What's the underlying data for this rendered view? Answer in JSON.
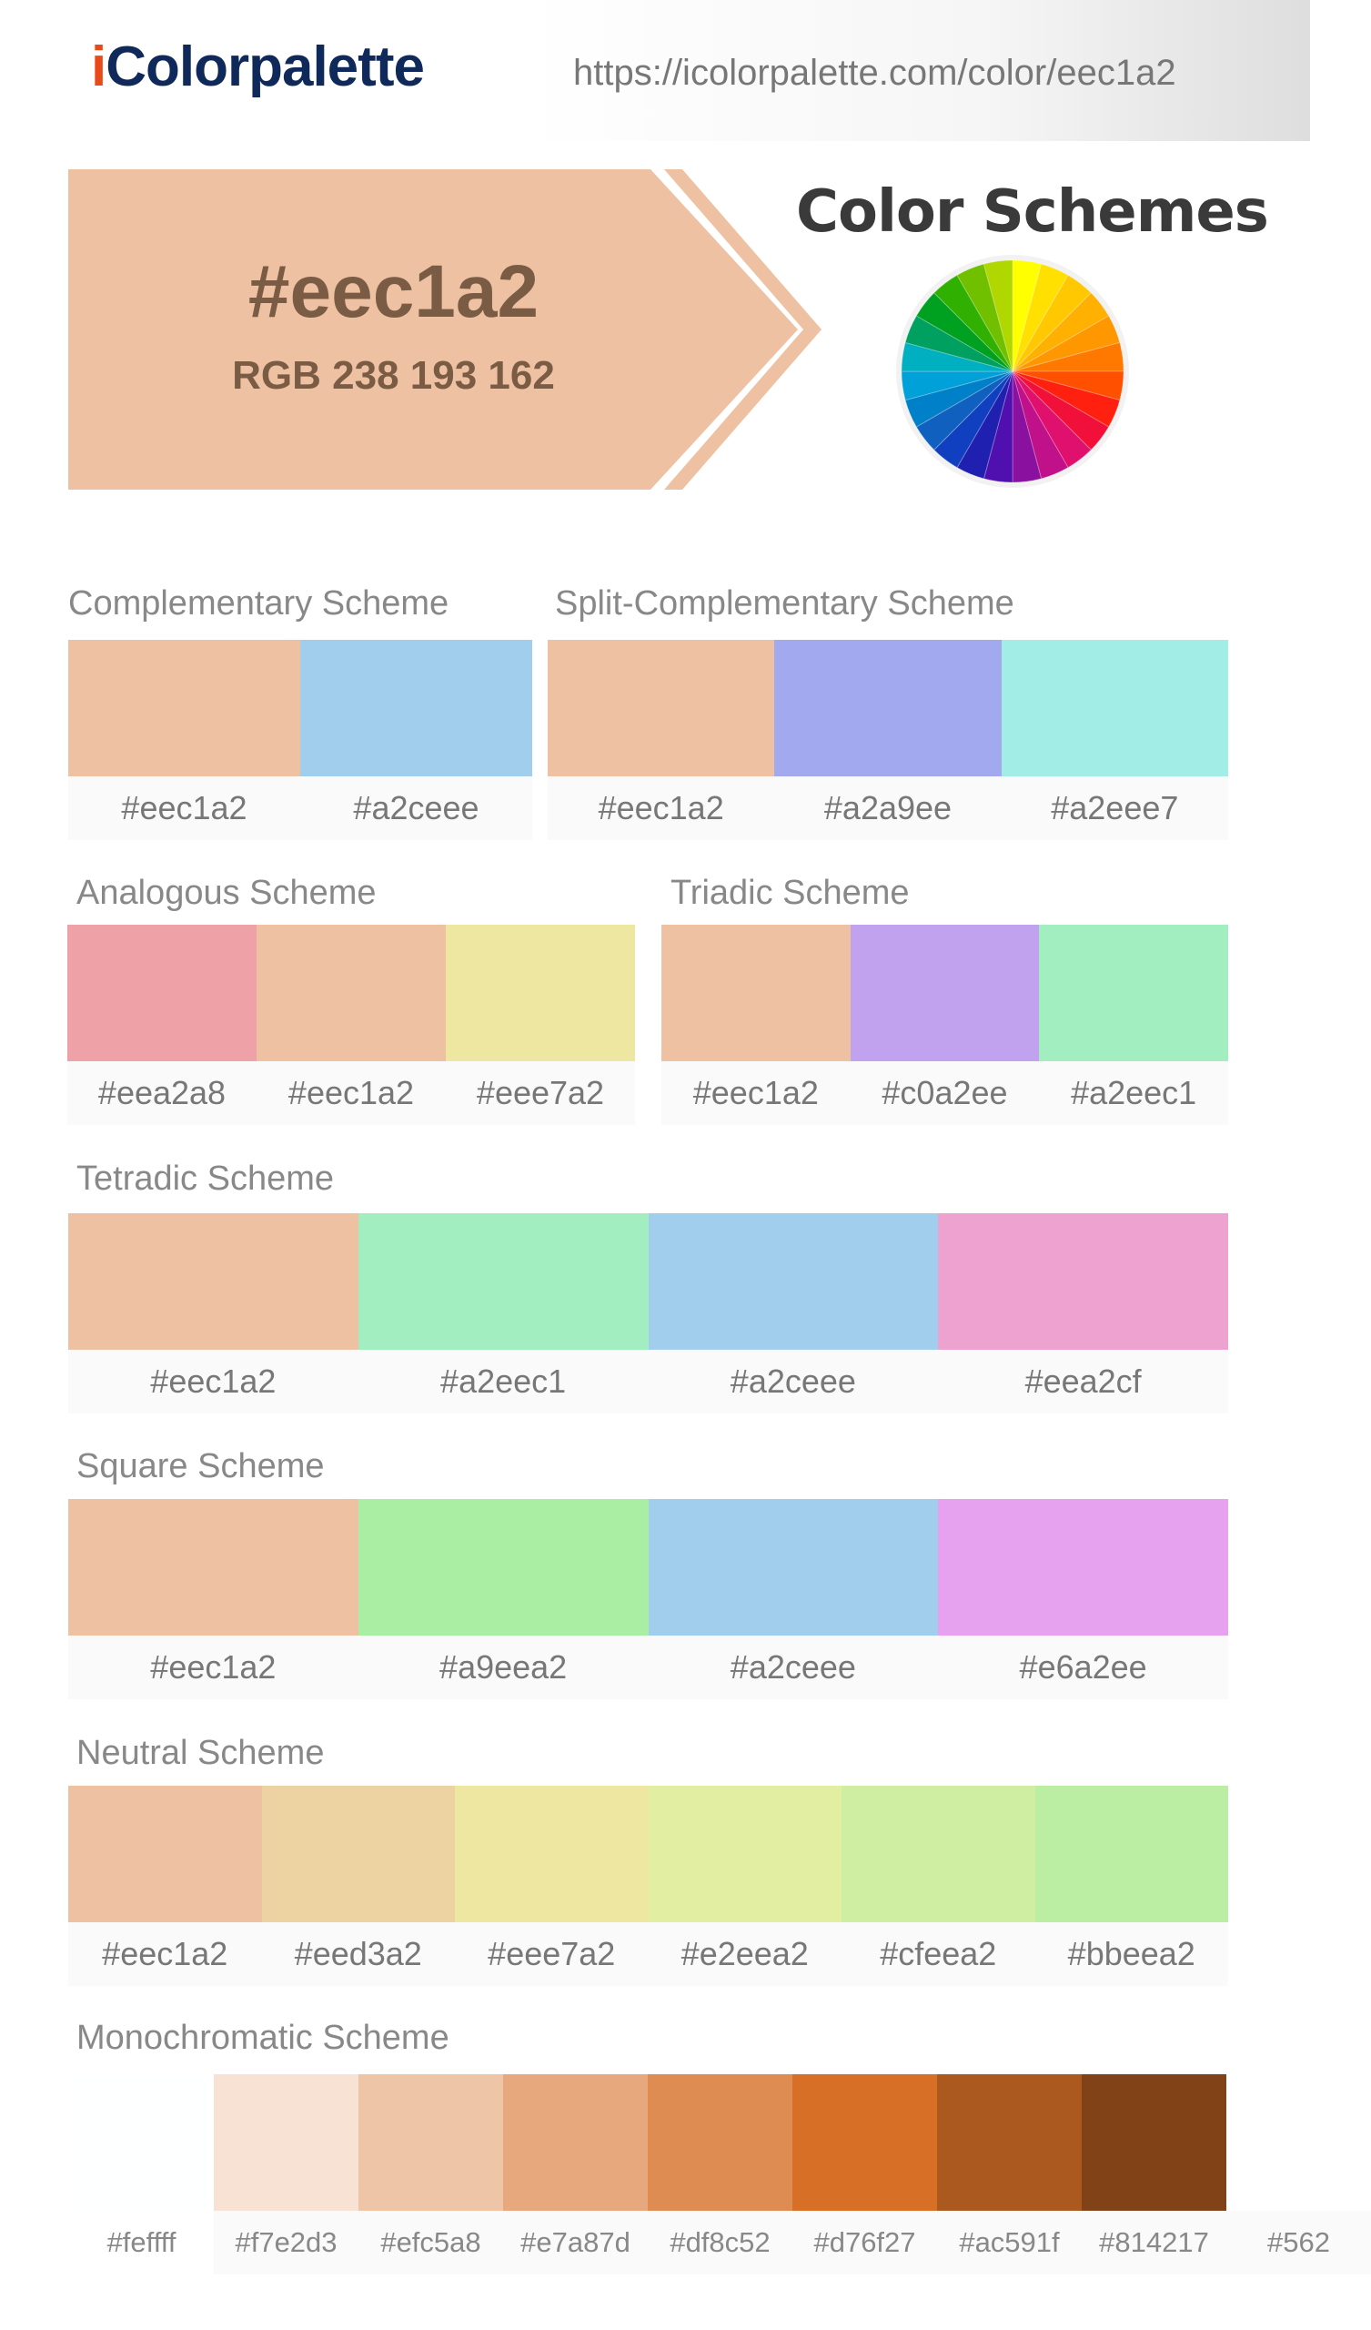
{
  "header": {
    "logo_i": "i",
    "logo_rest": "Colorpalette",
    "url": "https://icolorpalette.com/color/eec1a2"
  },
  "hero": {
    "hex": "#eec1a2",
    "rgb": "RGB 238 193 162",
    "color": "#eec1a2",
    "title": "Color Schemes"
  },
  "schemes": {
    "complementary": {
      "title": "Complementary Scheme",
      "colors": [
        "#eec1a2",
        "#a2ceee"
      ]
    },
    "split": {
      "title": "Split-Complementary Scheme",
      "colors": [
        "#eec1a2",
        "#a2a9ee",
        "#a2eee7"
      ]
    },
    "analogous": {
      "title": "Analogous Scheme",
      "colors": [
        "#eea2a8",
        "#eec1a2",
        "#eee7a2"
      ]
    },
    "triadic": {
      "title": "Triadic Scheme",
      "colors": [
        "#eec1a2",
        "#c0a2ee",
        "#a2eec1"
      ]
    },
    "tetradic": {
      "title": "Tetradic Scheme",
      "colors": [
        "#eec1a2",
        "#a2eec1",
        "#a2ceee",
        "#eea2cf"
      ]
    },
    "square": {
      "title": "Square Scheme",
      "colors": [
        "#eec1a2",
        "#a9eea2",
        "#a2ceee",
        "#e6a2ee"
      ]
    },
    "neutral": {
      "title": "Neutral Scheme",
      "colors": [
        "#eec1a2",
        "#eed3a2",
        "#eee7a2",
        "#e2eea2",
        "#cfeea2",
        "#bbeea2"
      ]
    },
    "monochromatic": {
      "title": "Monochromatic Scheme",
      "colors": [
        "#feffff",
        "#f7e2d3",
        "#efc5a8",
        "#e7a87d",
        "#df8c52",
        "#d76f27",
        "#ac591f",
        "#814217",
        "#562"
      ]
    }
  }
}
